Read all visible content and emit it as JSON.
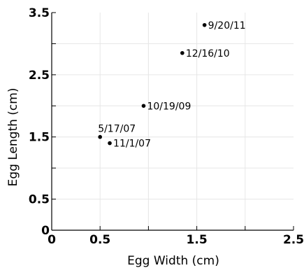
{
  "chart_data": {
    "type": "scatter",
    "xlabel": "Egg Width (cm)",
    "ylabel": "Egg Length (cm)",
    "xlim": [
      0,
      2.5
    ],
    "ylim": [
      0,
      3.5
    ],
    "grid": true,
    "x_ticks": [
      0,
      0.5,
      1,
      1.5,
      2,
      2.5
    ],
    "y_ticks": [
      0,
      0.5,
      1,
      1.5,
      2,
      2.5,
      3,
      3.5
    ],
    "x_tick_labels": [
      "0",
      "0.5",
      "",
      "1.5",
      "",
      "2.5"
    ],
    "y_tick_labels": [
      "0",
      "0.5",
      "",
      "1.5",
      "",
      "2.5",
      "",
      "3.5"
    ],
    "series": [
      {
        "points": [
          {
            "x": 0.5,
            "y": 1.5,
            "label": "5/17/07"
          },
          {
            "x": 0.6,
            "y": 1.4,
            "label": "11/1/07"
          },
          {
            "x": 0.95,
            "y": 2.0,
            "label": "10/19/09"
          },
          {
            "x": 1.35,
            "y": 2.85,
            "label": "12/16/10"
          },
          {
            "x": 1.58,
            "y": 3.3,
            "label": "9/20/11"
          }
        ]
      }
    ],
    "point_color": "#000000"
  }
}
